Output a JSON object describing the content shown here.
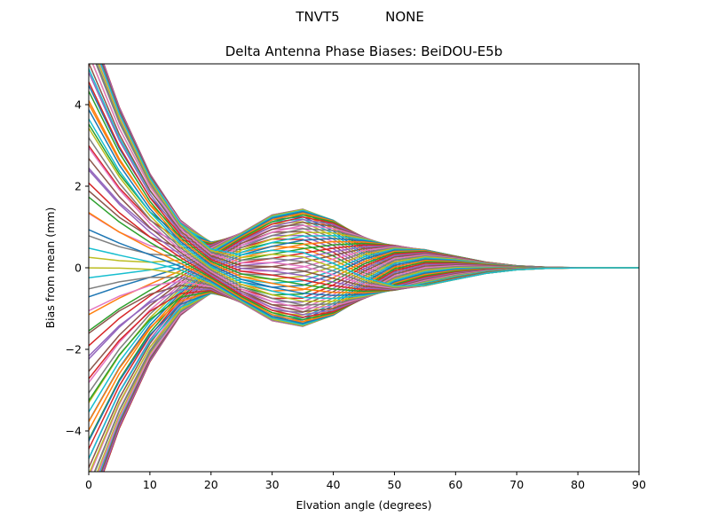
{
  "figure": {
    "suptitle_left": "TNVT5",
    "suptitle_right": "NONE"
  },
  "chart_data": {
    "type": "line",
    "title": "Delta Antenna Phase Biases: BeiDOU-E5b",
    "xlabel": "Elvation angle (degrees)",
    "ylabel": "Bias from mean (mm)",
    "xlim": [
      0,
      90
    ],
    "ylim": [
      -5,
      5
    ],
    "xticks": [
      0,
      10,
      20,
      30,
      40,
      50,
      60,
      70,
      80,
      90
    ],
    "yticks": [
      -4,
      -2,
      0,
      2,
      4
    ],
    "grid": false,
    "legend": "none",
    "x": [
      0,
      5,
      10,
      15,
      20,
      25,
      30,
      35,
      40,
      45,
      50,
      55,
      60,
      65,
      70,
      75,
      80,
      85,
      90
    ],
    "series_count": 80,
    "series_note": "Family of elevation-dependent bias curves converging to 0 at 90 degrees",
    "colors": [
      "#1f77b4",
      "#ff7f0e",
      "#2ca02c",
      "#d62728",
      "#9467bd",
      "#8c564b",
      "#e377c2",
      "#7f7f7f",
      "#bcbd22",
      "#17becf"
    ]
  }
}
